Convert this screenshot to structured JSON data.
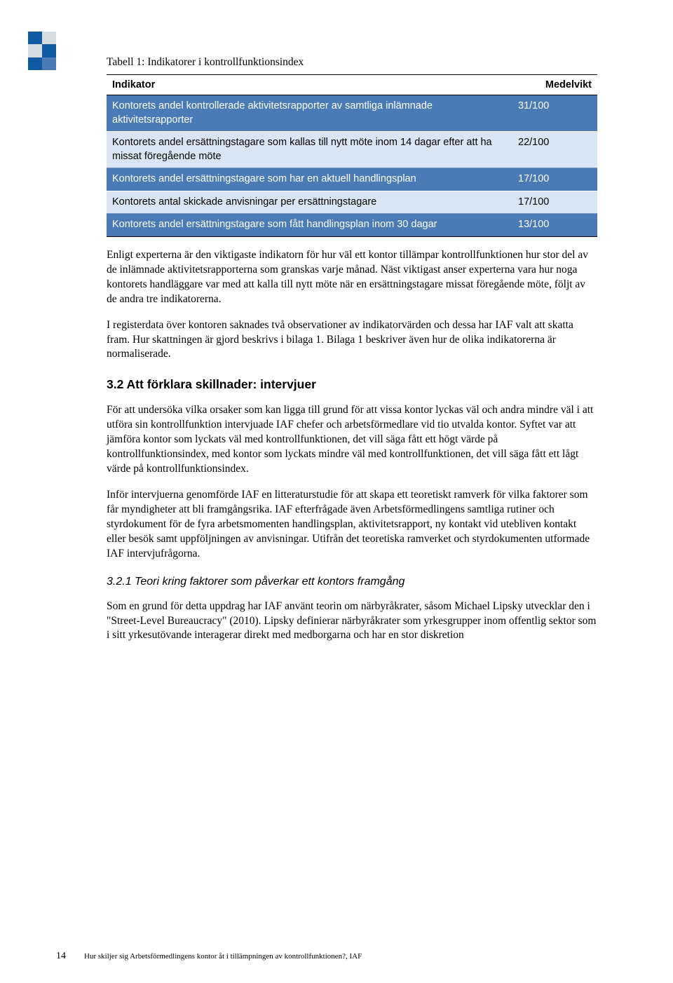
{
  "logo": {
    "colors": [
      [
        "#0f5aa0",
        "#d7dde2"
      ],
      [
        "#d7dde2",
        "#0f5aa0"
      ],
      [
        "#0f5aa0",
        "#4a7bb7"
      ]
    ]
  },
  "table": {
    "caption": "Tabell 1: Indikatorer i kontrollfunktionsindex",
    "headers": [
      "Indikator",
      "Medelvikt"
    ],
    "rows": [
      {
        "label": "Kontorets andel kontrollerade aktivitetsrapporter av samtliga inlämnade aktivitetsrapporter",
        "value": "31/100",
        "style": "dark"
      },
      {
        "label": "Kontorets andel ersättningstagare som kallas till nytt möte inom 14 dagar efter att ha missat föregående möte",
        "value": "22/100",
        "style": "light"
      },
      {
        "label": "Kontorets andel ersättningstagare som har en aktuell handlingsplan",
        "value": "17/100",
        "style": "dark"
      },
      {
        "label": "Kontorets antal skickade anvisningar per ersättningstagare",
        "value": "17/100",
        "style": "light"
      },
      {
        "label": "Kontorets andel ersättningstagare som fått handlingsplan inom 30 dagar",
        "value": "13/100",
        "style": "dark"
      }
    ]
  },
  "paragraphs": {
    "p1": "Enligt experterna är den viktigaste indikatorn för hur väl ett kontor tillämpar kontrollfunktionen hur stor del av de inlämnade aktivitetsrapporterna som granskas varje månad. Näst viktigast anser experterna vara hur noga kontorets handläggare var med att kalla till nytt möte när en ersättningstagare missat föregående möte, följt av de andra tre indikatorerna.",
    "p2": "I registerdata över kontoren saknades två observationer av indikatorvärden och dessa har IAF valt att skatta fram. Hur skattningen är gjord beskrivs i bilaga 1. Bilaga 1 beskriver även hur de olika indikatorerna är normaliserade.",
    "p3": "För att undersöka vilka orsaker som kan ligga till grund för att vissa kontor lyckas väl och andra mindre väl i att utföra sin kontrollfunktion intervjuade IAF chefer och arbetsförmedlare vid tio utvalda kontor. Syftet var att jämföra kontor som lyckats väl med kontrollfunktionen, det vill säga fått ett högt värde på kontrollfunktionsindex, med kontor som lyckats mindre väl med kontrollfunktionen, det vill säga fått ett lågt värde på kontrollfunktionsindex.",
    "p4": "Inför intervjuerna genomförde IAF en litteraturstudie för att skapa ett teoretiskt ramverk för vilka faktorer som får myndigheter att bli framgångsrika. IAF efterfrågade även Arbetsförmedlingens samtliga rutiner och styrdokument för de fyra arbetsmomenten handlingsplan, aktivitetsrapport, ny kontakt vid utebliven kontakt eller besök samt uppföljningen av anvisningar. Utifrån det teoretiska ramverket och styrdokumenten utformade IAF intervjufrågorna.",
    "p5": "Som en grund för detta uppdrag har IAF använt teorin om närbyråkrater, såsom Michael Lipsky utvecklar den i \"Street-Level Bureaucracy\" (2010). Lipsky definierar närbyråkrater som yrkesgrupper inom offentlig sektor som i sitt yrkesutövande interagerar direkt med medborgarna och har en stor diskretion"
  },
  "headings": {
    "h32": "3.2  Att förklara skillnader: intervjuer",
    "h321": "3.2.1  Teori kring faktorer som påverkar ett kontors framgång"
  },
  "footer": {
    "page": "14",
    "text": "Hur skiljer sig Arbetsförmedlingens kontor åt i tillämpningen av kontrollfunktionen?, IAF"
  }
}
